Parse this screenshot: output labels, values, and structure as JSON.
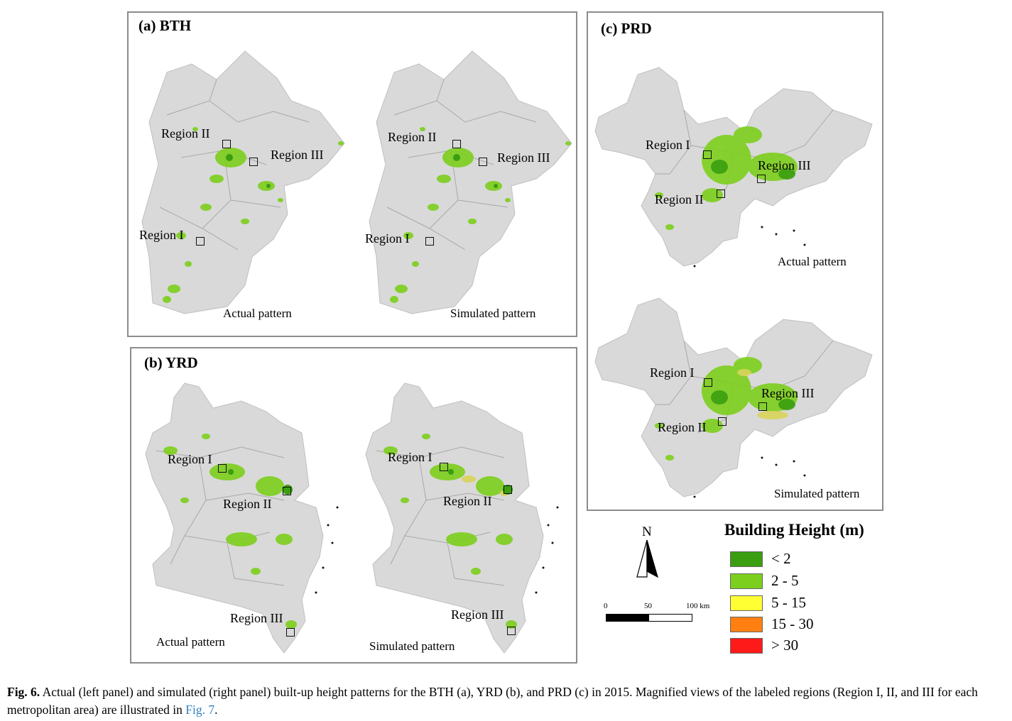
{
  "panels": {
    "bth": {
      "title": "(a) BTH",
      "left_caption": "Actual pattern",
      "right_caption": "Simulated pattern",
      "regions": [
        "Region II",
        "Region III",
        "Region I"
      ]
    },
    "yrd": {
      "title": "(b) YRD",
      "left_caption": "Actual pattern",
      "right_caption": "Simulated pattern",
      "regions": [
        "Region I",
        "Region II",
        "Region III"
      ]
    },
    "prd": {
      "title": "(c) PRD",
      "top_caption": "Actual pattern",
      "bottom_caption": "Simulated pattern",
      "regions": [
        "Region I",
        "Region III",
        "Region II"
      ]
    }
  },
  "north_arrow": {
    "label": "N"
  },
  "scale_bar": {
    "ticks": [
      "0",
      "50",
      "100 km"
    ]
  },
  "legend": {
    "title": "Building Height (m)",
    "items": [
      {
        "label": "< 2",
        "color": "#3a9e10"
      },
      {
        "label": "2 - 5",
        "color": "#7ccf1c"
      },
      {
        "label": "5 - 15",
        "color": "#ffff33"
      },
      {
        "label": "15 - 30",
        "color": "#ff7f11"
      },
      {
        "label": "> 30",
        "color": "#ff1a1a"
      }
    ]
  },
  "caption": {
    "fig_label": "Fig. 6.",
    "text": " Actual (left panel) and simulated (right panel) built-up height patterns for the BTH (a), YRD (b), and PRD (c) in 2015. Magnified views of the labeled regions (Region I, II, and III for each metropolitan area) are illustrated in ",
    "ref": "Fig. 7",
    "end": "."
  },
  "colors": {
    "land": "#d9d9d9",
    "boundary": "#a8a8a8",
    "frame": "#8c8c8c"
  }
}
